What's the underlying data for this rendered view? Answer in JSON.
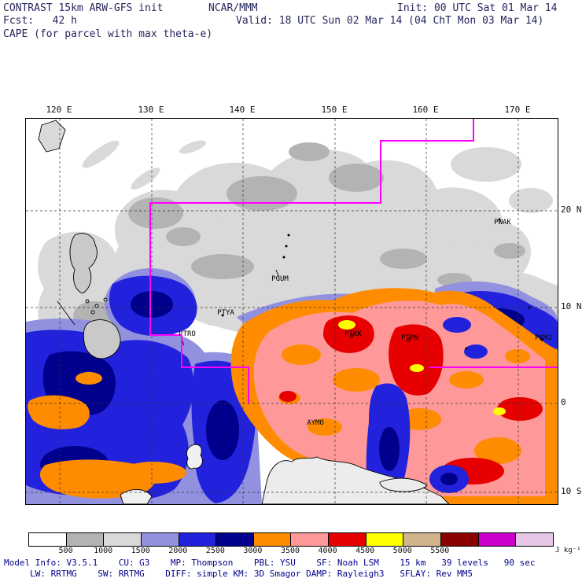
{
  "header": {
    "model_title": "CONTRAST 15km ARW-GFS init",
    "center": "NCAR/MMM",
    "init": "Init: 00 UTC Sat 01 Mar 14",
    "fcst": "Fcst:   42 h",
    "valid": "Valid: 18 UTC Sun 02 Mar 14 (04 ChT Mon 03 Mar 14)",
    "field_title": "CAPE (for parcel with max theta-e)"
  },
  "map": {
    "lon_ticks": [
      "120 E",
      "130 E",
      "140 E",
      "150 E",
      "160 E",
      "170 E"
    ],
    "lat_ticks": [
      "20 N",
      "10 N",
      "0",
      "10 S"
    ],
    "stations": [
      {
        "id": "PWAK"
      },
      {
        "id": "PGUM"
      },
      {
        "id": "PTYA"
      },
      {
        "id": "PTRO"
      },
      {
        "id": "PTKK"
      },
      {
        "id": "PTPN"
      },
      {
        "id": "PKMJ"
      },
      {
        "id": "AYMO"
      }
    ],
    "flight_track_color": "#ff00ff"
  },
  "legend": {
    "ticks": [
      "500",
      "1000",
      "1500",
      "2000",
      "2500",
      "3000",
      "3500",
      "4000",
      "4500",
      "5000",
      "5500"
    ],
    "colors": [
      "#ffffff",
      "#b3b3b3",
      "#d9d9d9",
      "#9191e0",
      "#2222dd",
      "#00008c",
      "#ff8c00",
      "#ff9898",
      "#e60000",
      "#ffff00",
      "#d2b48c",
      "#8b0000",
      "#cc00cc",
      "#e6c8e6"
    ],
    "unit": "J kg⁻¹"
  },
  "footer": {
    "line1": "Model Info: V3.5.1    CU: G3    MP: Thompson    PBL: YSU    SF: Noah LSM    15 km   39 levels   90 sec",
    "line2": "     LW: RRTMG    SW: RRTMG    DIFF: simple KM: 3D Smagor DAMP: Rayleigh3   SFLAY: Rev MM5"
  },
  "colors": {
    "header_text": "#26265e",
    "footer_text": "#00008b",
    "flight_track": "#ff00ff",
    "gridline": "#333333"
  },
  "chart_data": {
    "type": "heatmap",
    "title": "CAPE (for parcel with max theta-e)",
    "variable": "CAPE",
    "unit": "J kg⁻¹",
    "model": "CONTRAST 15km ARW-GFS",
    "source": "NCAR/MMM",
    "init_time": "00 UTC Sat 01 Mar 14",
    "forecast_hour": 42,
    "valid_time": "18 UTC Sun 02 Mar 14 (04 ChT Mon 03 Mar 14)",
    "x": {
      "label": "longitude",
      "ticks": [
        "120 E",
        "130 E",
        "140 E",
        "150 E",
        "160 E",
        "170 E"
      ],
      "range_approx": [
        "116 E",
        "174 E"
      ]
    },
    "y": {
      "label": "latitude",
      "ticks": [
        "20 N",
        "10 N",
        "0",
        "10 S"
      ],
      "range_approx": [
        "11 S",
        "29 N"
      ]
    },
    "levels_j_per_kg": [
      500,
      1000,
      1500,
      2000,
      2500,
      3000,
      3500,
      4000,
      4500,
      5000,
      5500
    ],
    "palette": [
      "#ffffff",
      "#b3b3b3",
      "#d9d9d9",
      "#9191e0",
      "#2222dd",
      "#00008c",
      "#ff8c00",
      "#ff9898",
      "#e60000",
      "#ffff00",
      "#d2b48c",
      "#8b0000",
      "#cc00cc",
      "#e6c8e6"
    ],
    "grid": "dashed",
    "legend_position": "bottom",
    "stations": [
      "PWAK",
      "PGUM",
      "PTYA",
      "PTRO",
      "PTKK",
      "PTPN",
      "PKMJ",
      "AYMO"
    ],
    "overlay": {
      "flight_track": "magenta stepped survey-box polyline, NW Pacific, exits right edge near 3 N"
    },
    "field_summary": [
      {
        "region": "subtropics north of ~12 N (incl. Guam, Wake)",
        "cape_range": [
          0,
          1500
        ],
        "fill": "white / gray"
      },
      {
        "region": "Philippine Sea and seas around Philippines, 10 N-10 S west of 140 E",
        "cape_range": [
          1500,
          3000
        ],
        "fill": "light blue / blue / dark blue"
      },
      {
        "region": "central-eastern near-equatorial Pacific 140 E-174 E, 8 S-8 N",
        "cape_range": [
          3000,
          4000
        ],
        "fill": "orange / pink"
      },
      {
        "region": "embedded maxima near Chuuk, Pohnpei, ~165 E and north of New Guinea",
        "cape_range": [
          4000,
          5000
        ],
        "fill": "red with yellow cores"
      },
      {
        "region": "patches in Indonesian seas southwest corner",
        "cape_range": [
          3000,
          3500
        ],
        "fill": "orange"
      }
    ]
  }
}
